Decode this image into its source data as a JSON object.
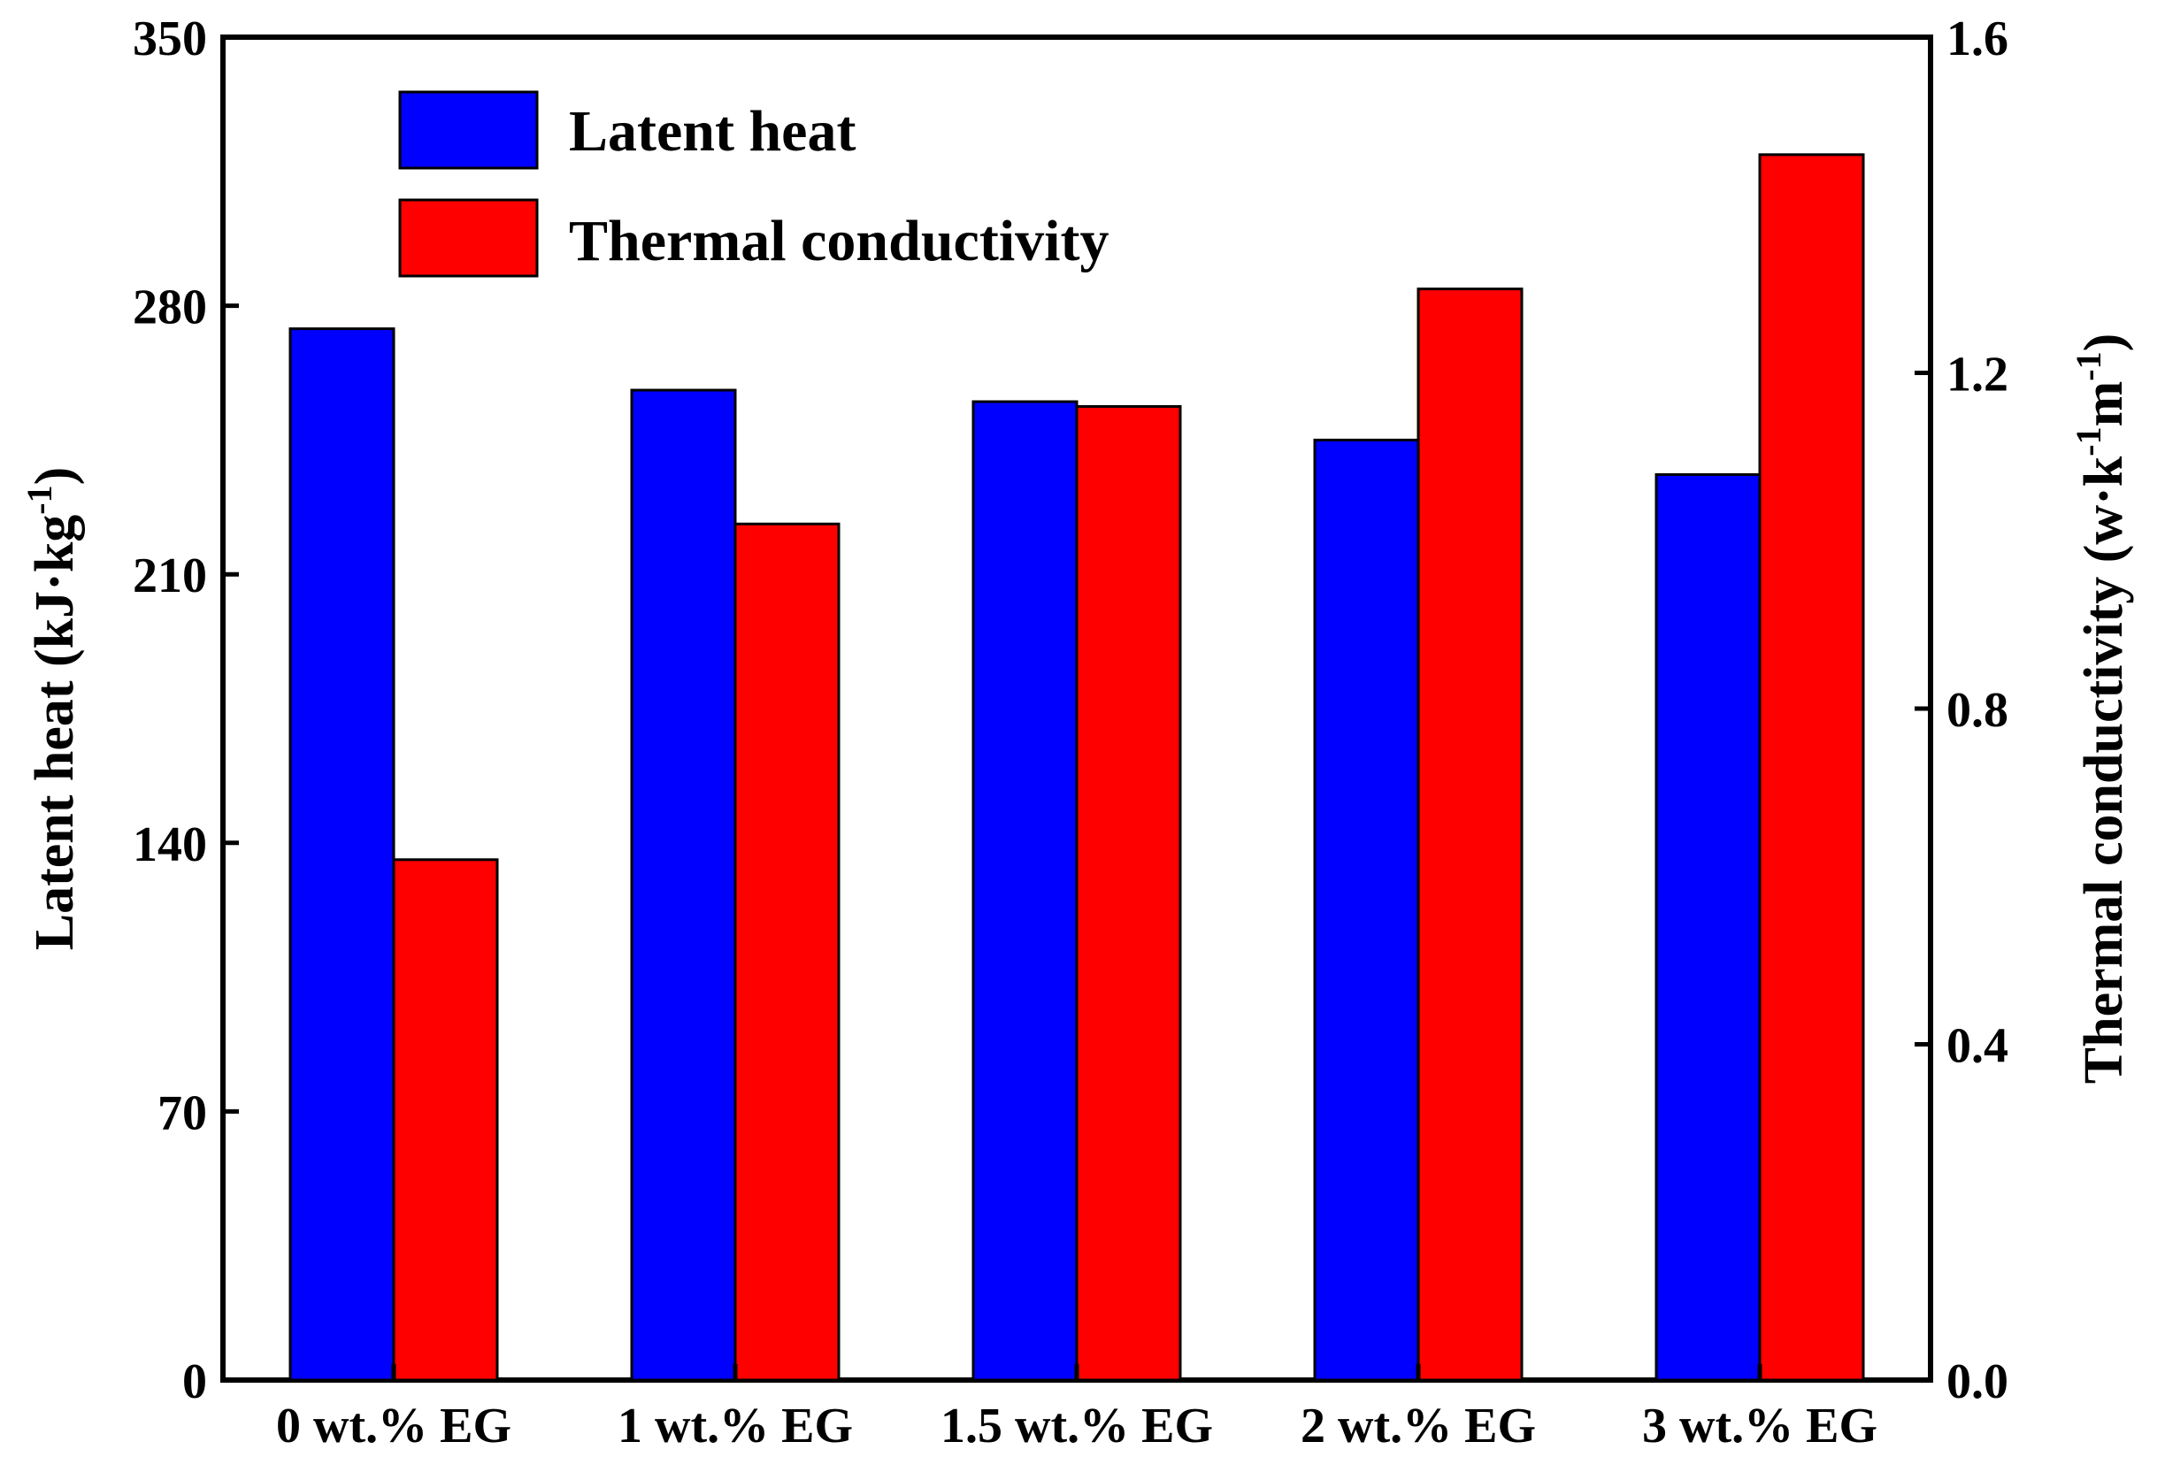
{
  "chart_data": {
    "type": "bar",
    "categories": [
      "0 wt.% EG",
      "1 wt.% EG",
      "1.5 wt.% EG",
      "2 wt.% EG",
      "3 wt.% EG"
    ],
    "series": [
      {
        "name": "Latent heat",
        "axis": "left",
        "color": "#0000ff",
        "values": [
          274,
          258,
          255,
          245,
          236
        ]
      },
      {
        "name": "Thermal conductivity",
        "axis": "right",
        "color": "#ff0000",
        "values": [
          0.62,
          1.02,
          1.16,
          1.3,
          1.46
        ]
      }
    ],
    "y_left": {
      "label_main": "Latent heat (kJ·kg",
      "label_sup": "-1",
      "label_end": ")",
      "ylim": [
        0,
        350
      ],
      "ticks": [
        "0",
        "70",
        "140",
        "210",
        "280",
        "350"
      ]
    },
    "y_right": {
      "label_main": "Thermal conductivity (w·k",
      "label_sup1": "-1",
      "label_mid": "m",
      "label_sup2": "-1",
      "label_end": ")",
      "ylim": [
        0,
        1.6
      ],
      "ticks": [
        "0.0",
        "0.4",
        "0.8",
        "1.2",
        "1.6"
      ]
    },
    "legend_position": "top-left"
  }
}
